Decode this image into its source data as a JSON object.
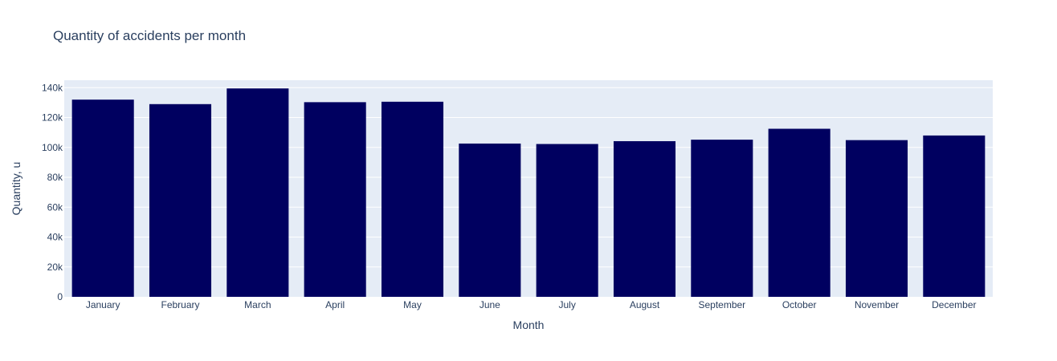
{
  "chart_data": {
    "type": "bar",
    "title": "Quantity of accidents per month",
    "xlabel": "Month",
    "ylabel": "Quantity, u",
    "categories": [
      "January",
      "February",
      "March",
      "April",
      "May",
      "June",
      "July",
      "August",
      "September",
      "October",
      "November",
      "December"
    ],
    "values": [
      132000,
      129000,
      139500,
      130300,
      130600,
      102600,
      102300,
      104200,
      105200,
      112500,
      104900,
      108000
    ],
    "ylim": [
      0,
      145000
    ],
    "yticks": [
      0,
      20000,
      40000,
      60000,
      80000,
      100000,
      120000,
      140000
    ],
    "ytick_labels": [
      "0",
      "20k",
      "40k",
      "60k",
      "80k",
      "100k",
      "120k",
      "140k"
    ],
    "grid": true,
    "bar_color": "#000060",
    "plot_background": "#e5ecf6",
    "text_color": "#2a3f5f"
  }
}
